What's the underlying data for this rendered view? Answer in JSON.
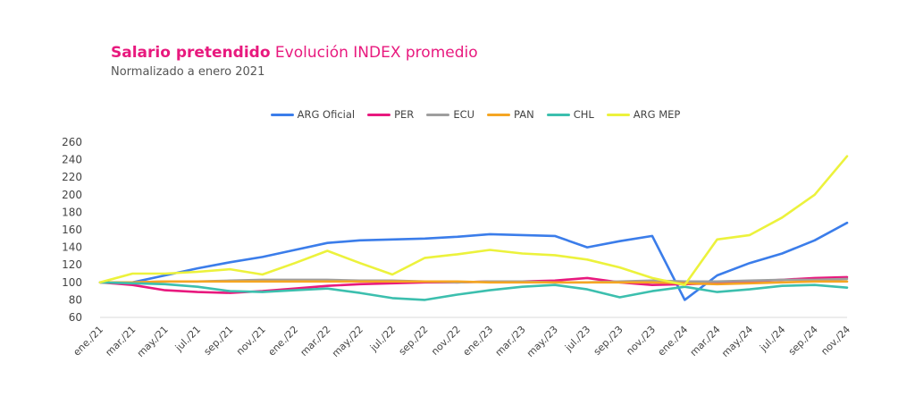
{
  "header": {
    "title_bold": "Salario pretendido",
    "title_rest": "Evolución INDEX promedio",
    "subtitle": "Normalizado a enero 2021"
  },
  "chart_data": {
    "type": "line",
    "title": "Salario pretendido Evolución INDEX promedio",
    "subtitle": "Normalizado a enero 2021",
    "xlabel": "",
    "ylabel": "",
    "ylim": [
      60,
      260
    ],
    "yticks": [
      60,
      80,
      100,
      120,
      140,
      160,
      180,
      200,
      220,
      240,
      260
    ],
    "legend_position": "top-center",
    "categories": [
      "ene./21",
      "mar./21",
      "may./21",
      "jul./21",
      "sep./21",
      "nov./21",
      "ene./22",
      "mar./22",
      "may./22",
      "jul./22",
      "sep./22",
      "nov./22",
      "ene./23",
      "mar./23",
      "may./23",
      "jul./23",
      "sep./23",
      "nov./23",
      "ene./24",
      "mar./24",
      "may./24",
      "jul./24",
      "sep./24",
      "nov./24"
    ],
    "series": [
      {
        "name": "ARG Oficial",
        "color": "#3b7dea",
        "values": [
          100,
          100,
          108,
          116,
          123,
          129,
          137,
          145,
          148,
          149,
          150,
          152,
          155,
          154,
          153,
          140,
          147,
          153,
          80,
          108,
          122,
          133,
          148,
          168
        ]
      },
      {
        "name": "PER",
        "color": "#e8197e",
        "values": [
          100,
          97,
          91,
          89,
          88,
          90,
          93,
          96,
          98,
          99,
          100,
          100,
          101,
          101,
          102,
          105,
          100,
          97,
          98,
          99,
          101,
          103,
          105,
          106
        ]
      },
      {
        "name": "ECU",
        "color": "#9e9e9e",
        "values": [
          100,
          100,
          101,
          101,
          102,
          103,
          103,
          103,
          102,
          102,
          101,
          100,
          101,
          101,
          100,
          100,
          101,
          102,
          101,
          101,
          102,
          103,
          103,
          104
        ]
      },
      {
        "name": "PAN",
        "color": "#f5a623",
        "values": [
          100,
          100,
          101,
          101,
          101,
          101,
          101,
          101,
          101,
          101,
          101,
          101,
          100,
          100,
          100,
          100,
          100,
          100,
          99,
          98,
          99,
          100,
          101,
          101
        ]
      },
      {
        "name": "CHL",
        "color": "#3cbfae",
        "values": [
          100,
          99,
          98,
          95,
          90,
          89,
          91,
          93,
          88,
          82,
          80,
          86,
          91,
          95,
          97,
          92,
          83,
          90,
          95,
          89,
          92,
          96,
          97,
          94
        ]
      },
      {
        "name": "ARG MEP",
        "color": "#ecf23c",
        "values": [
          100,
          110,
          110,
          112,
          115,
          109,
          122,
          136,
          122,
          109,
          128,
          132,
          137,
          133,
          131,
          126,
          117,
          105,
          97,
          149,
          154,
          174,
          200,
          244
        ]
      }
    ]
  }
}
